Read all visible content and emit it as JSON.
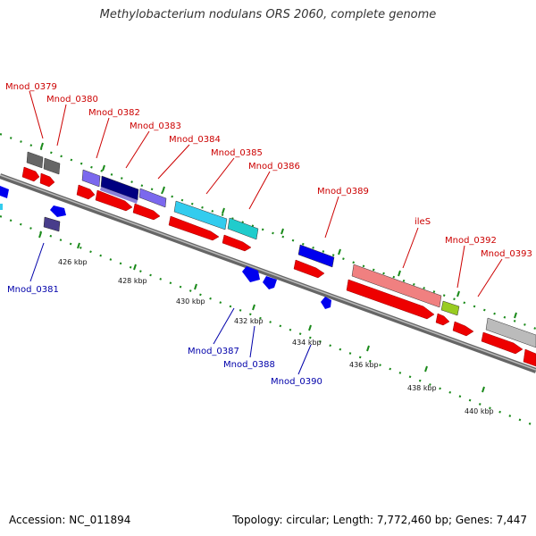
{
  "title": "Methylobacterium nodulans ORS 2060, complete genome",
  "footer": {
    "accession": "Accession: NC_011894",
    "summary": "Topology: circular; Length: 7,772,460 bp; Genes: 7,447"
  },
  "colors": {
    "top_label": "#cc0000",
    "bottom_label": "#0000aa",
    "backbone": "#777777",
    "tick": "#1a8a1a"
  },
  "ruler_labels": [
    "426 kbp",
    "428 kbp",
    "430 kbp",
    "432 kbp",
    "434 kbp",
    "436 kbp",
    "438 kbp",
    "440 kbp"
  ],
  "top_labels": [
    "Mnod_0379",
    "Mnod_0380",
    "Mnod_0382",
    "Mnod_0383",
    "Mnod_0384",
    "Mnod_0385",
    "Mnod_0386",
    "Mnod_0389",
    "ileS",
    "Mnod_0392",
    "Mnod_0393"
  ],
  "bottom_labels": [
    "Mnod_0381",
    "Mnod_0387",
    "Mnod_0388",
    "Mnod_0390"
  ]
}
